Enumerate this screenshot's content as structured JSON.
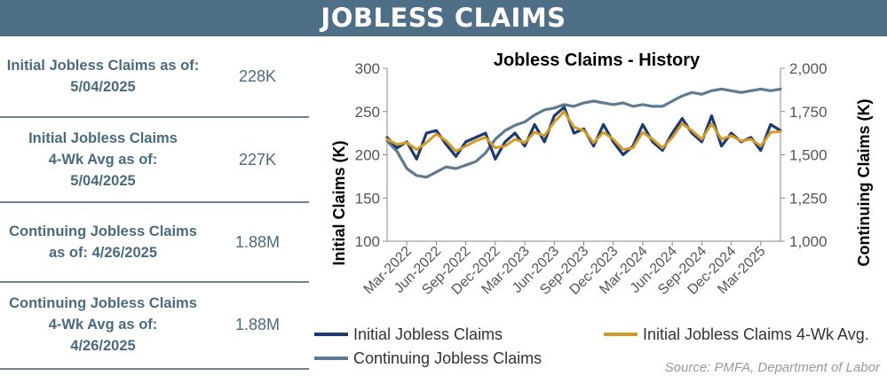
{
  "banner": {
    "title": "JOBLESS CLAIMS"
  },
  "stats": [
    {
      "label_lines": [
        "Initial Jobless Claims as of:",
        "5/04/2025"
      ],
      "value": "228K"
    },
    {
      "label_lines": [
        "Initial Jobless Claims",
        "4-Wk Avg as of:",
        "5/04/2025"
      ],
      "value": "227K"
    },
    {
      "label_lines": [
        "Continuing Jobless Claims",
        "as of: 4/26/2025"
      ],
      "value": "1.88M"
    },
    {
      "label_lines": [
        "Continuing Jobless Claims",
        "4-Wk Avg as of:",
        "4/26/2025"
      ],
      "value": "1.88M"
    }
  ],
  "chart_data": {
    "type": "line",
    "title": "Jobless Claims - History",
    "ylabel": "Initial Claims (K)",
    "y2label": "Continuing  Claims (K)",
    "ylim": [
      100,
      300
    ],
    "y2lim": [
      1000,
      2000
    ],
    "yticks": [
      "100",
      "150",
      "200",
      "250",
      "300"
    ],
    "y2ticks": [
      "1,000",
      "1,250",
      "1,500",
      "1,750",
      "2,000"
    ],
    "xticks": [
      "Mar-2022",
      "Jun-2022",
      "Sep-2022",
      "Dec-2022",
      "Mar-2023",
      "Jun-2023",
      "Sep-2023",
      "Dec-2023",
      "Mar-2024",
      "Jun-2024",
      "Sep-2024",
      "Dec-2024",
      "Mar-2025"
    ],
    "grid": false,
    "legend_position": "bottom",
    "source": "Source: PMFA,  Department  of Labor",
    "colors": {
      "initial": "#1f3a6e",
      "initial_4wk": "#d49a28",
      "continuing": "#5d7a90",
      "axis_text": "#555555",
      "title": "#000000"
    },
    "series": [
      {
        "name": "Initial Jobless Claims",
        "axis": "left",
        "color": "#1f3a6e",
        "x": [
          "2022-01",
          "2022-02",
          "2022-03",
          "2022-04",
          "2022-05",
          "2022-06",
          "2022-07",
          "2022-08",
          "2022-09",
          "2022-10",
          "2022-11",
          "2022-12",
          "2023-01",
          "2023-02",
          "2023-03",
          "2023-04",
          "2023-05",
          "2023-06",
          "2023-07",
          "2023-08",
          "2023-09",
          "2023-10",
          "2023-11",
          "2023-12",
          "2024-01",
          "2024-02",
          "2024-03",
          "2024-04",
          "2024-05",
          "2024-06",
          "2024-07",
          "2024-08",
          "2024-09",
          "2024-10",
          "2024-11",
          "2024-12",
          "2025-01",
          "2025-02",
          "2025-03",
          "2025-04",
          "2025-05"
        ],
        "values": [
          220,
          208,
          215,
          195,
          225,
          228,
          212,
          198,
          215,
          220,
          225,
          195,
          215,
          225,
          210,
          235,
          215,
          245,
          255,
          225,
          230,
          210,
          235,
          215,
          200,
          210,
          235,
          215,
          205,
          225,
          242,
          225,
          215,
          245,
          210,
          225,
          215,
          220,
          205,
          235,
          228
        ]
      },
      {
        "name": "Initial Jobless Claims 4-Wk Avg.",
        "axis": "left",
        "color": "#d49a28",
        "x": [
          "2022-01",
          "2022-02",
          "2022-03",
          "2022-04",
          "2022-05",
          "2022-06",
          "2022-07",
          "2022-08",
          "2022-09",
          "2022-10",
          "2022-11",
          "2022-12",
          "2023-01",
          "2023-02",
          "2023-03",
          "2023-04",
          "2023-05",
          "2023-06",
          "2023-07",
          "2023-08",
          "2023-09",
          "2023-10",
          "2023-11",
          "2023-12",
          "2024-01",
          "2024-02",
          "2024-03",
          "2024-04",
          "2024-05",
          "2024-06",
          "2024-07",
          "2024-08",
          "2024-09",
          "2024-10",
          "2024-11",
          "2024-12",
          "2025-01",
          "2025-02",
          "2025-03",
          "2025-04",
          "2025-05"
        ],
        "values": [
          218,
          212,
          214,
          206,
          214,
          224,
          216,
          204,
          210,
          216,
          220,
          208,
          210,
          218,
          214,
          226,
          222,
          238,
          250,
          232,
          228,
          214,
          226,
          218,
          206,
          208,
          226,
          218,
          208,
          220,
          236,
          228,
          218,
          236,
          218,
          222,
          216,
          218,
          210,
          226,
          227
        ]
      },
      {
        "name": "Continuing Jobless Claims",
        "axis": "right",
        "color": "#5d7a90",
        "x": [
          "2022-01",
          "2022-02",
          "2022-03",
          "2022-04",
          "2022-05",
          "2022-06",
          "2022-07",
          "2022-08",
          "2022-09",
          "2022-10",
          "2022-11",
          "2022-12",
          "2023-01",
          "2023-02",
          "2023-03",
          "2023-04",
          "2023-05",
          "2023-06",
          "2023-07",
          "2023-08",
          "2023-09",
          "2023-10",
          "2023-11",
          "2023-12",
          "2024-01",
          "2024-02",
          "2024-03",
          "2024-04",
          "2024-05",
          "2024-06",
          "2024-07",
          "2024-08",
          "2024-09",
          "2024-10",
          "2024-11",
          "2024-12",
          "2025-01",
          "2025-02",
          "2025-03",
          "2025-04",
          "2025-05"
        ],
        "values": [
          1580,
          1520,
          1420,
          1380,
          1370,
          1400,
          1430,
          1420,
          1440,
          1460,
          1510,
          1590,
          1640,
          1670,
          1690,
          1730,
          1760,
          1770,
          1790,
          1780,
          1800,
          1810,
          1800,
          1790,
          1800,
          1780,
          1790,
          1780,
          1780,
          1810,
          1840,
          1860,
          1850,
          1870,
          1880,
          1870,
          1860,
          1870,
          1880,
          1870,
          1880
        ]
      }
    ]
  }
}
